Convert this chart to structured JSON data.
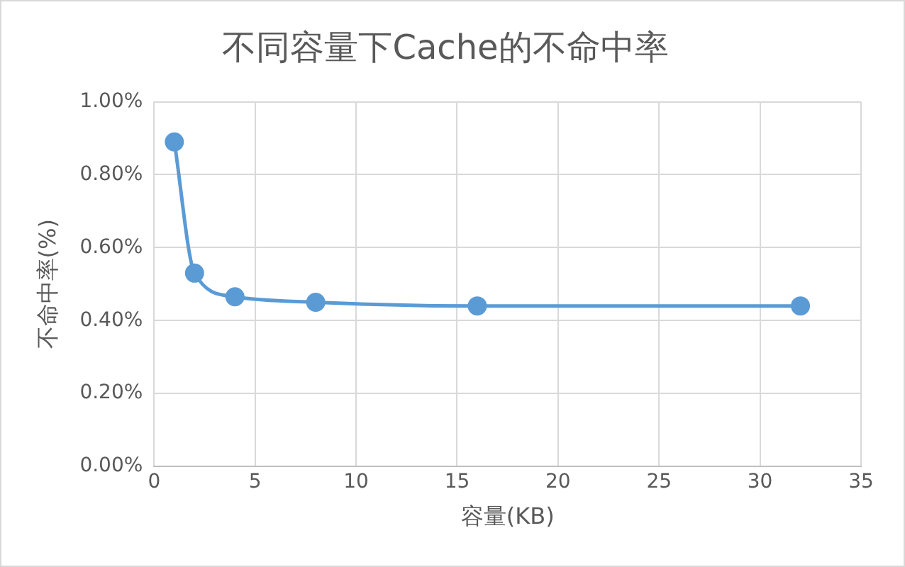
{
  "chart_data": {
    "type": "line",
    "title": "不同容量下Cache的不命中率",
    "xlabel": "容量(KB)",
    "ylabel": "不命中率(%)",
    "x": [
      1,
      2,
      4,
      8,
      16,
      32
    ],
    "series": [
      {
        "color": "#5b9bd5",
        "values": [
          0.89,
          0.53,
          0.465,
          0.45,
          0.44,
          0.44
        ]
      }
    ],
    "xlim": [
      0,
      35
    ],
    "xticks": [
      0,
      5,
      10,
      15,
      20,
      25,
      30,
      35
    ],
    "ylim": [
      0,
      1
    ],
    "yticks": [
      {
        "value": 0,
        "label": "0.00%"
      },
      {
        "value": 0.2,
        "label": "0.20%"
      },
      {
        "value": 0.4,
        "label": "0.40%"
      },
      {
        "value": 0.6,
        "label": "0.60%"
      },
      {
        "value": 0.8,
        "label": "0.80%"
      },
      {
        "value": 1,
        "label": "1.00%"
      }
    ],
    "grid": true,
    "legend": false,
    "marker": "circle",
    "line_style": "solid"
  }
}
